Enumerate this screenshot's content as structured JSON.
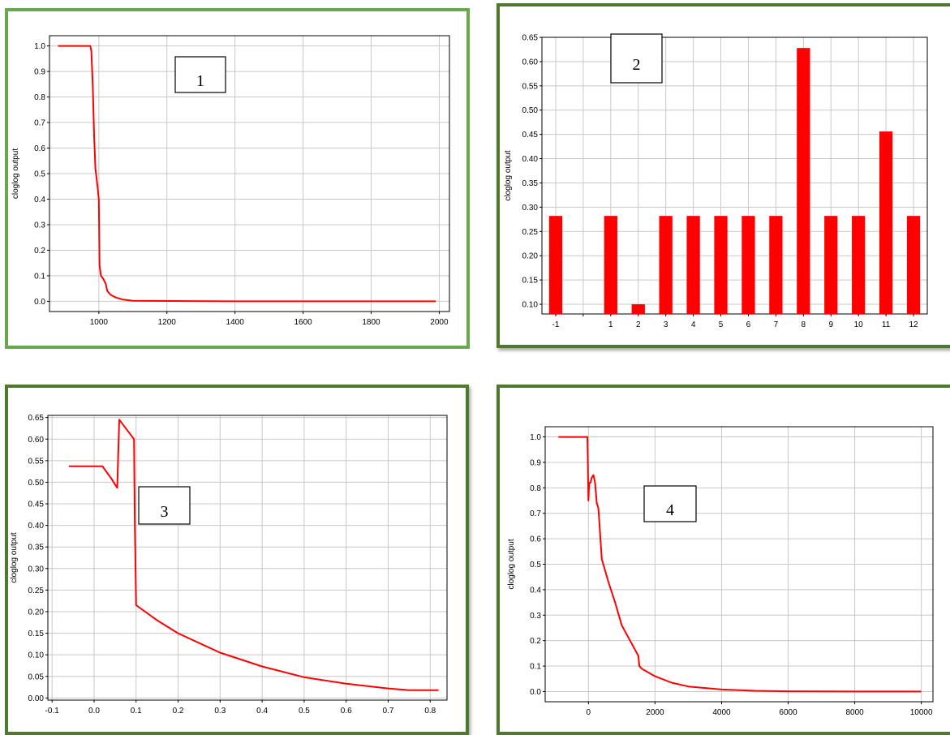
{
  "colors": {
    "series": "#ff0000",
    "grid": "#c8c8c8",
    "frame": "#000000",
    "border_light": "#6aa84f",
    "border_dark": "#4f7a2d"
  },
  "chart_data": [
    {
      "type": "line",
      "panel_label": "1",
      "ylabel": "cloglog output",
      "xlabel": "",
      "xlim": [
        855,
        2030
      ],
      "ylim": [
        -0.04,
        1.04
      ],
      "xticks": [
        1000,
        1200,
        1400,
        1600,
        1800,
        2000
      ],
      "yticks": [
        "0.0",
        "0.1",
        "0.2",
        "0.3",
        "0.4",
        "0.5",
        "0.6",
        "0.7",
        "0.8",
        "0.9",
        "1.0"
      ],
      "grid": true,
      "series": [
        {
          "x": [
            880,
            975,
            978,
            982,
            986,
            990,
            996,
            1000,
            1002,
            1006,
            1012,
            1020,
            1025,
            1035,
            1050,
            1070,
            1100,
            1400,
            1700,
            1990
          ],
          "y": [
            1.0,
            1.0,
            0.98,
            0.85,
            0.65,
            0.52,
            0.45,
            0.4,
            0.14,
            0.1,
            0.09,
            0.07,
            0.04,
            0.025,
            0.015,
            0.007,
            0.002,
            0.0,
            0.0,
            0.0
          ]
        }
      ]
    },
    {
      "type": "bar",
      "panel_label": "2",
      "ylabel": "cloglog output",
      "xlabel": "",
      "ylim": [
        0.08,
        0.65
      ],
      "yticks": [
        "0.10",
        "0.15",
        "0.20",
        "0.25",
        "0.30",
        "0.35",
        "0.40",
        "0.45",
        "0.50",
        "0.55",
        "0.60",
        "0.65"
      ],
      "grid": true,
      "categories": [
        "-1",
        "",
        "1",
        "2",
        "3",
        "4",
        "5",
        "6",
        "7",
        "8",
        "9",
        "10",
        "11",
        "12"
      ],
      "values": [
        0.282,
        null,
        0.282,
        0.1,
        0.282,
        0.282,
        0.282,
        0.282,
        0.282,
        0.628,
        0.282,
        0.282,
        0.456,
        0.282
      ]
    },
    {
      "type": "line",
      "panel_label": "3",
      "ylabel": "cloglog output",
      "xlabel": "",
      "xlim": [
        -0.11,
        0.84
      ],
      "ylim": [
        -0.005,
        0.655
      ],
      "xticks": [
        "-0.1",
        "0.0",
        "0.1",
        "0.2",
        "0.3",
        "0.4",
        "0.5",
        "0.6",
        "0.7",
        "0.8"
      ],
      "yticks": [
        "0.00",
        "0.05",
        "0.10",
        "0.15",
        "0.20",
        "0.25",
        "0.30",
        "0.35",
        "0.40",
        "0.45",
        "0.50",
        "0.55",
        "0.60",
        "0.65"
      ],
      "grid": true,
      "series": [
        {
          "x": [
            -0.06,
            0.02,
            0.04,
            0.055,
            0.06,
            0.095,
            0.097,
            0.1,
            0.15,
            0.2,
            0.3,
            0.4,
            0.5,
            0.6,
            0.7,
            0.75,
            0.82
          ],
          "y": [
            0.537,
            0.537,
            0.51,
            0.487,
            0.645,
            0.6,
            0.4,
            0.215,
            0.18,
            0.15,
            0.105,
            0.073,
            0.048,
            0.033,
            0.022,
            0.018,
            0.018
          ]
        }
      ]
    },
    {
      "type": "line",
      "panel_label": "4",
      "ylabel": "cloglog output",
      "xlabel": "",
      "xlim": [
        -1300,
        10350
      ],
      "ylim": [
        -0.04,
        1.04
      ],
      "xticks": [
        0,
        2000,
        4000,
        6000,
        8000,
        10000
      ],
      "yticks": [
        "0.0",
        "0.1",
        "0.2",
        "0.3",
        "0.4",
        "0.5",
        "0.6",
        "0.7",
        "0.8",
        "0.9",
        "1.0"
      ],
      "grid": true,
      "series": [
        {
          "x": [
            -900,
            -30,
            0,
            20,
            60,
            100,
            150,
            200,
            250,
            300,
            400,
            600,
            800,
            1000,
            1500,
            1530,
            1600,
            2000,
            2500,
            3000,
            4000,
            5000,
            6000,
            8000,
            10000
          ],
          "y": [
            1.0,
            1.0,
            0.75,
            0.82,
            0.82,
            0.84,
            0.85,
            0.82,
            0.74,
            0.72,
            0.52,
            0.43,
            0.35,
            0.26,
            0.14,
            0.1,
            0.09,
            0.06,
            0.035,
            0.02,
            0.008,
            0.003,
            0.001,
            0.0,
            0.0
          ]
        }
      ]
    }
  ]
}
